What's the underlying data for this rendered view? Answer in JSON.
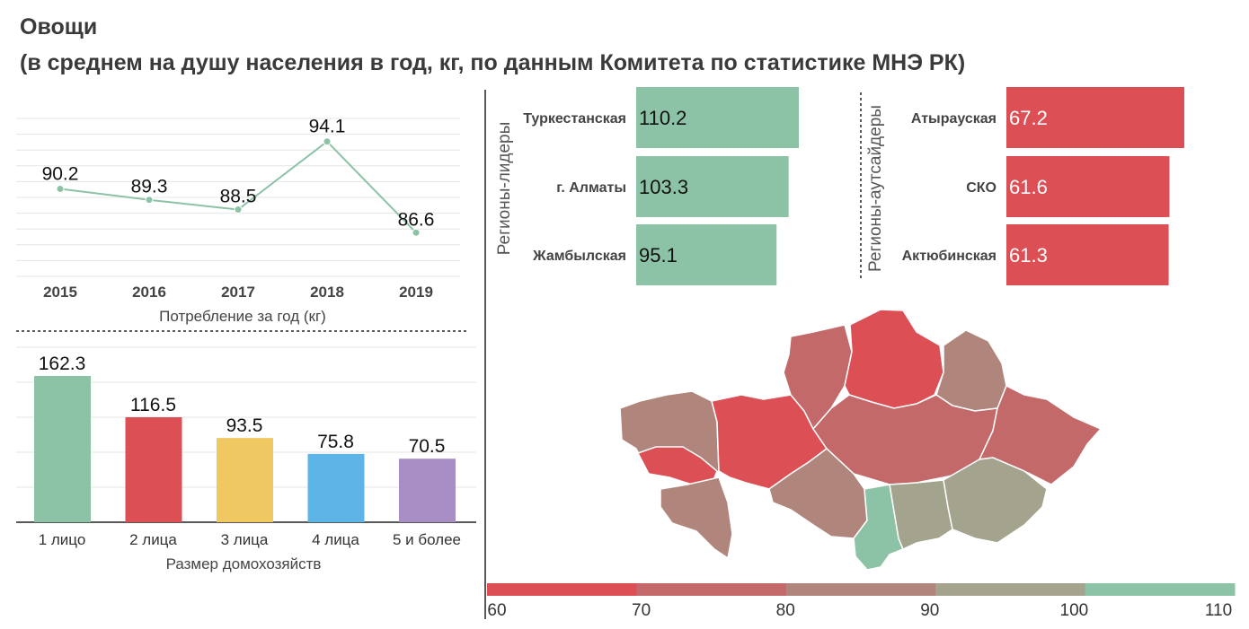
{
  "title": "Овощи",
  "subtitle": "(в среднем на душу населения в год, кг, по данным Комитета по статистике МНЭ РК)",
  "chart_data": [
    {
      "type": "line",
      "xlabel": "Потребление за год (кг)",
      "categories": [
        "2015",
        "2016",
        "2017",
        "2018",
        "2019"
      ],
      "values": [
        90.2,
        89.3,
        88.5,
        94.1,
        86.6
      ],
      "ylim": [
        83,
        96
      ],
      "grid": true,
      "color": "#8cc3a6"
    },
    {
      "type": "bar",
      "xlabel": "Размер домохозяйств",
      "categories": [
        "1 лицо",
        "2 лица",
        "3 лица",
        "4 лица",
        "5 и более"
      ],
      "values": [
        162.3,
        116.5,
        93.5,
        75.8,
        70.5
      ],
      "colors": [
        "#8cc3a6",
        "#dc4f55",
        "#efc862",
        "#5db4e6",
        "#a98ec6"
      ],
      "ylim": [
        0,
        200
      ],
      "grid": true
    },
    {
      "type": "bar",
      "orientation": "horizontal",
      "group_label": "Регионы-лидеры",
      "categories": [
        "Туркестанская",
        "г. Алматы",
        "Жамбылская"
      ],
      "values": [
        110.2,
        103.3,
        95.1
      ],
      "color": "#8cc3a6",
      "xlim": [
        0,
        120
      ]
    },
    {
      "type": "bar",
      "orientation": "horizontal",
      "group_label": "Регионы-аутсайдеры",
      "categories": [
        "Атырауская",
        "СКО",
        "Актюбинская"
      ],
      "values": [
        67.2,
        61.6,
        61.3
      ],
      "color": "#dc4f55",
      "xlim": [
        0,
        73
      ]
    },
    {
      "type": "heatmap",
      "scale_ticks": [
        "60",
        "70",
        "80",
        "90",
        "100",
        "110"
      ],
      "scale_colors": [
        "#dc4f55",
        "#c4696a",
        "#b0867c",
        "#a3a38e",
        "#8cc3a6"
      ]
    }
  ]
}
